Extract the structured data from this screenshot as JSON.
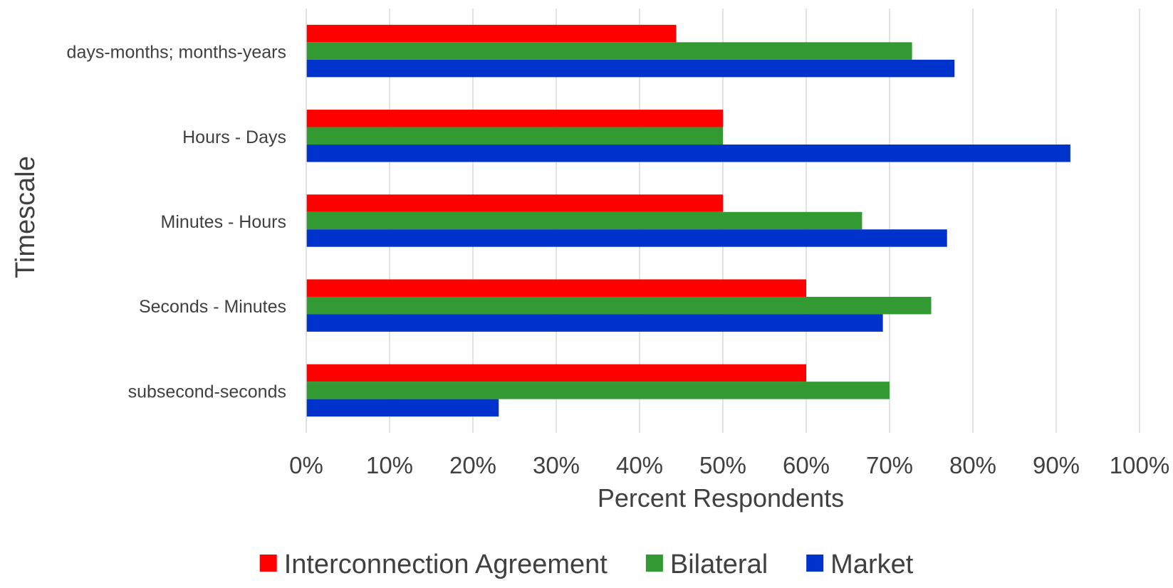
{
  "chart_data": {
    "type": "bar",
    "orientation": "horizontal",
    "categories": [
      "subsecond-seconds",
      "Seconds - Minutes",
      "Minutes - Hours",
      "Hours - Days",
      "days-months; months-years"
    ],
    "series": [
      {
        "name": "Interconnection Agreement",
        "color": "#FF0000",
        "values": [
          60,
          60,
          50,
          50,
          44.4
        ]
      },
      {
        "name": "Bilateral",
        "color": "#339933",
        "values": [
          70,
          75,
          66.7,
          50,
          72.7
        ]
      },
      {
        "name": "Market",
        "color": "#0033CC",
        "values": [
          23.1,
          69.2,
          76.9,
          91.7,
          77.8
        ]
      }
    ],
    "xlabel": "Percent Respondents",
    "ylabel": "Timescale",
    "xlim": [
      0,
      100
    ],
    "x_ticks": [
      "0%",
      "10%",
      "20%",
      "30%",
      "40%",
      "50%",
      "60%",
      "70%",
      "80%",
      "90%",
      "100%"
    ],
    "grid": "vertical",
    "legend_position": "bottom"
  }
}
